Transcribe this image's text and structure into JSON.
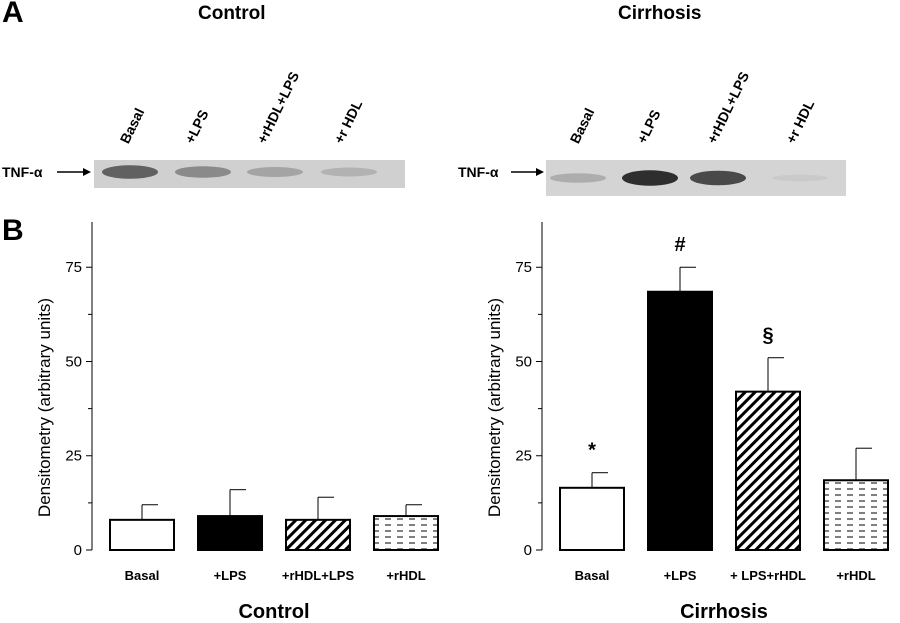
{
  "panels": {
    "a": "A",
    "b": "B"
  },
  "blot": {
    "control": {
      "title": "Control",
      "marker_label": "TNF-α",
      "lanes": [
        "Basal",
        "+LPS",
        "+rHDL+LPS",
        "+r HDL"
      ],
      "band_intensity": [
        0.75,
        0.55,
        0.4,
        0.3
      ]
    },
    "cirrhosis": {
      "title": "Cirrhosis",
      "marker_label": "TNF-α",
      "lanes": [
        "Basal",
        "+LPS",
        "+rHDL+LPS",
        "+r HDL"
      ],
      "band_intensity": [
        0.35,
        0.95,
        0.85,
        0.08
      ]
    }
  },
  "chart_data": [
    {
      "type": "bar",
      "xlabel": "Control",
      "ylabel": "Densitometry (arbitrary units)",
      "ylim": [
        0,
        87
      ],
      "yticks": [
        0,
        25,
        50,
        75
      ],
      "ytick_labels": [
        "0",
        "25",
        "50",
        "75"
      ],
      "categories": [
        "Basal",
        "+LPS",
        "+rHDL+LPS",
        "+rHDL"
      ],
      "values": [
        8,
        9,
        8,
        9
      ],
      "errors": [
        4,
        7,
        6,
        3
      ],
      "fills": [
        "white",
        "black",
        "diagonal",
        "dashed"
      ],
      "annotations": [
        "",
        "",
        "",
        ""
      ]
    },
    {
      "type": "bar",
      "xlabel": "Cirrhosis",
      "ylabel": "Densitometry (arbitrary units)",
      "ylim": [
        0,
        87
      ],
      "yticks": [
        0,
        25,
        50,
        75
      ],
      "ytick_labels": [
        "0",
        "25",
        "50",
        "75"
      ],
      "categories": [
        "Basal",
        "+LPS",
        "+ LPS+rHDL",
        "+rHDL"
      ],
      "values": [
        16.5,
        68.5,
        42,
        18.5
      ],
      "errors": [
        4,
        6.5,
        9,
        8.5
      ],
      "fills": [
        "white",
        "black",
        "diagonal",
        "dashed"
      ],
      "annotations": [
        "*",
        "#",
        "§",
        ""
      ]
    }
  ]
}
